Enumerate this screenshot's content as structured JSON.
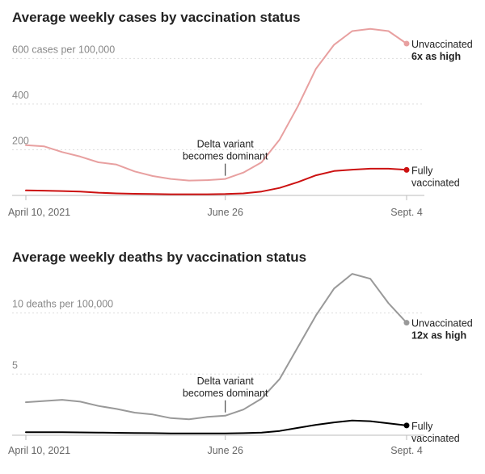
{
  "chart_data": [
    {
      "type": "line",
      "title": "Average weekly cases by vaccination status",
      "ylim": [
        0,
        750
      ],
      "y_ticks": [
        {
          "value": 200,
          "label": "200"
        },
        {
          "value": 400,
          "label": "400"
        },
        {
          "value": 600,
          "label": "600 cases per 100,000"
        }
      ],
      "x_ticks": [
        "April 10, 2021",
        "June 26",
        "Sept. 4"
      ],
      "grid": true,
      "annotation": {
        "lines": [
          "Delta variant",
          "becomes dominant"
        ],
        "x": 11
      },
      "series": [
        {
          "color": "#e8a0a0",
          "label_lines": [
            "Unvaccinated"
          ],
          "label_bold": "6x as high",
          "x": [
            0,
            1,
            2,
            3,
            4,
            5,
            6,
            7,
            8,
            9,
            10,
            11,
            12,
            13,
            14,
            15,
            16,
            17,
            18,
            19,
            20,
            21
          ],
          "values": [
            220,
            215,
            190,
            170,
            145,
            135,
            105,
            85,
            72,
            65,
            67,
            72,
            100,
            145,
            245,
            390,
            555,
            660,
            720,
            730,
            720,
            665
          ]
        },
        {
          "color": "#cc1111",
          "label_lines": [
            "Fully",
            "vaccinated"
          ],
          "label_bold": "",
          "x": [
            0,
            1,
            2,
            3,
            4,
            5,
            6,
            7,
            8,
            9,
            10,
            11,
            12,
            13,
            14,
            15,
            16,
            17,
            18,
            19,
            20,
            21
          ],
          "values": [
            22,
            21,
            19,
            17,
            12,
            9,
            7,
            6,
            5,
            5,
            5,
            6,
            9,
            17,
            33,
            58,
            88,
            107,
            113,
            117,
            117,
            112
          ]
        }
      ]
    },
    {
      "type": "line",
      "title": "Average weekly deaths by vaccination status",
      "ylim": [
        0,
        14
      ],
      "y_ticks": [
        {
          "value": 5,
          "label": "5"
        },
        {
          "value": 10,
          "label": "10 deaths per 100,000"
        }
      ],
      "x_ticks": [
        "April 10, 2021",
        "June 26",
        "Sept. 4"
      ],
      "grid": true,
      "annotation": {
        "lines": [
          "Delta variant",
          "becomes dominant"
        ],
        "x": 11
      },
      "series": [
        {
          "color": "#999999",
          "label_lines": [
            "Unvaccinated"
          ],
          "label_bold": "12x as high",
          "x": [
            0,
            1,
            2,
            3,
            4,
            5,
            6,
            7,
            8,
            9,
            10,
            11,
            12,
            13,
            14,
            15,
            16,
            17,
            18,
            19,
            20,
            21
          ],
          "values": [
            2.7,
            2.8,
            2.9,
            2.75,
            2.4,
            2.15,
            1.85,
            1.7,
            1.4,
            1.3,
            1.5,
            1.6,
            2.1,
            3.0,
            4.6,
            7.2,
            9.8,
            12.0,
            13.2,
            12.8,
            10.8,
            9.2
          ]
        },
        {
          "color": "#000000",
          "label_lines": [
            "Fully",
            "vaccinated"
          ],
          "label_bold": "",
          "x": [
            0,
            1,
            2,
            3,
            4,
            5,
            6,
            7,
            8,
            9,
            10,
            11,
            12,
            13,
            14,
            15,
            16,
            17,
            18,
            19,
            20,
            21
          ],
          "values": [
            0.25,
            0.25,
            0.25,
            0.23,
            0.22,
            0.2,
            0.18,
            0.17,
            0.15,
            0.15,
            0.15,
            0.15,
            0.17,
            0.22,
            0.35,
            0.6,
            0.85,
            1.05,
            1.2,
            1.15,
            0.98,
            0.8
          ]
        }
      ]
    }
  ]
}
